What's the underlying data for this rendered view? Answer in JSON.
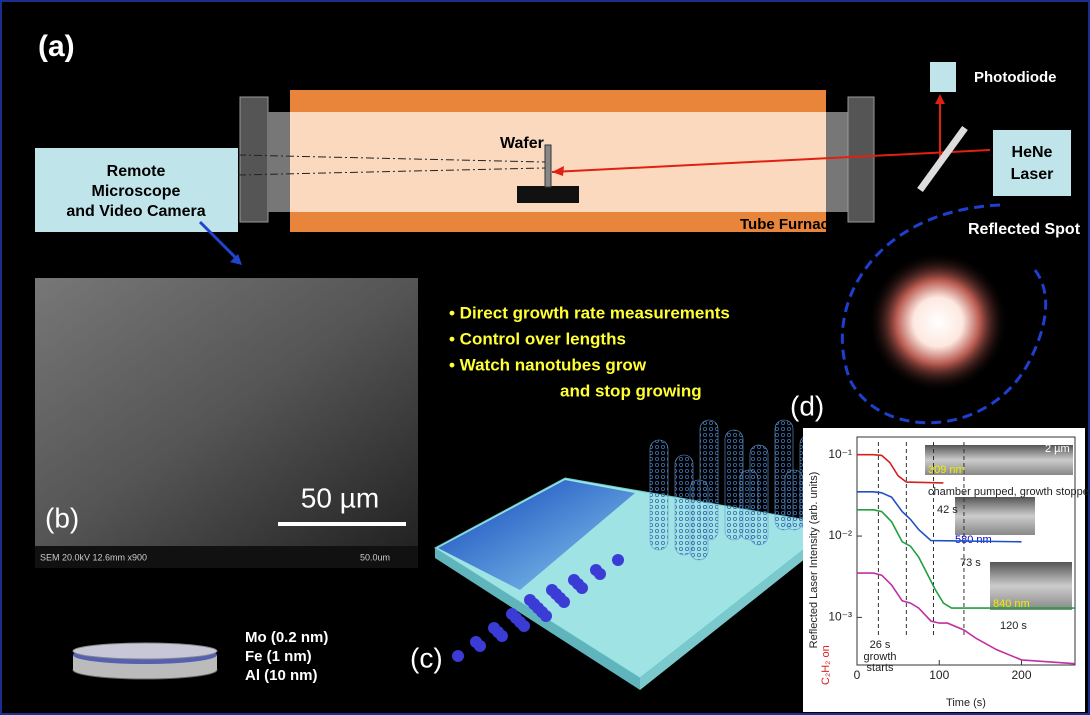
{
  "panel_a": {
    "label": "(a)",
    "furnace": "Tube Furnace",
    "wafer": "Wafer",
    "camera": [
      "Remote",
      "Microscope",
      "and Video Camera"
    ],
    "photodiode": "Photodiode",
    "laser": [
      "HeNe",
      "Laser"
    ],
    "spot": "Reflected Spot"
  },
  "panel_b": {
    "label": "(b)",
    "scale": "50 µm",
    "info": "SEM 20.0kV 12.6mm x900",
    "scale_small": "50.0um"
  },
  "bullets": [
    "•  Direct growth rate measurements",
    "•  Control over lengths",
    "•  Watch nanotubes grow",
    "and stop growing"
  ],
  "panel_c": {
    "label": "(c)"
  },
  "layers": [
    "Mo (0.2 nm)",
    "Fe (1 nm)",
    "Al (10 nm)"
  ],
  "panel_d": {
    "label": "(d)"
  },
  "chart_data": {
    "type": "line",
    "log_y": true,
    "x_label": "Time (s)",
    "y_label": "Reflected Laser Intensity (arb. units)",
    "xlim": [
      0,
      265
    ],
    "xticks": [
      0,
      100,
      200
    ],
    "ylim": [
      0.00026,
      0.165
    ],
    "yticks": [
      {
        "value": 0.1,
        "label": "10⁻¹"
      },
      {
        "value": 0.01,
        "label": "10⁻²"
      },
      {
        "value": 0.001,
        "label": "10⁻³"
      }
    ],
    "vlines": [
      26,
      60,
      93,
      130
    ],
    "annotations": [
      "2 µm",
      "309 nm",
      "chamber pumped, growth stopped",
      "580 nm",
      "840 nm",
      "42 s",
      "73 s",
      "120 s",
      "26 s",
      "growth",
      "starts",
      "C₂H₂ on"
    ],
    "series": [
      {
        "color": "#d42020",
        "x": [
          0,
          20,
          30,
          40,
          50,
          60,
          105
        ],
        "values": [
          0.1,
          0.1,
          0.098,
          0.08,
          0.055,
          0.046,
          0.045
        ]
      },
      {
        "color": "#2050c8",
        "x": [
          0,
          20,
          30,
          42,
          55,
          65,
          75,
          90,
          200
        ],
        "values": [
          0.035,
          0.035,
          0.034,
          0.03,
          0.02,
          0.016,
          0.012,
          0.0088,
          0.0085
        ]
      },
      {
        "color": "#20a040",
        "x": [
          0,
          20,
          30,
          42,
          55,
          65,
          75,
          85,
          95,
          105,
          115,
          265
        ],
        "values": [
          0.021,
          0.021,
          0.02,
          0.015,
          0.0085,
          0.0075,
          0.0055,
          0.0035,
          0.0022,
          0.0015,
          0.0013,
          0.0013
        ]
      },
      {
        "color": "#c030a0",
        "x": [
          0,
          20,
          30,
          42,
          55,
          65,
          75,
          90,
          100,
          110,
          130,
          145,
          170,
          200,
          265
        ],
        "values": [
          0.0035,
          0.0035,
          0.0033,
          0.0025,
          0.0016,
          0.0015,
          0.0013,
          0.0009,
          0.00085,
          0.00085,
          0.0007,
          0.00055,
          0.0004,
          0.0003,
          0.00027
        ]
      }
    ]
  }
}
